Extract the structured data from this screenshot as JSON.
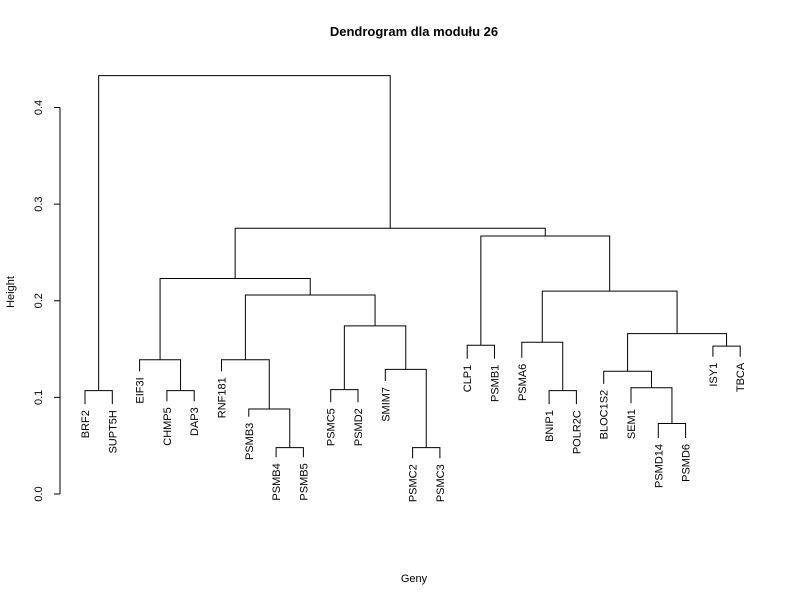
{
  "chart_data": {
    "type": "dendrogram",
    "title": "Dendrogram dla modułu 26",
    "xlabel": "Geny",
    "ylabel": "Height",
    "ylim": [
      0,
      0.45
    ],
    "yticks": [
      0.0,
      0.1,
      0.2,
      0.3,
      0.4
    ],
    "ytick_labels": [
      "0.0",
      "0.1",
      "0.2",
      "0.3",
      "0.4"
    ],
    "grid": false,
    "leaves": [
      "BRF2",
      "SUPT5H",
      "EIF3I",
      "CHMP5",
      "DAP3",
      "RNF181",
      "PSMB3",
      "PSMB4",
      "PSMB5",
      "PSMC5",
      "PSMD2",
      "SMIM7",
      "PSMC2",
      "PSMC3",
      "CLP1",
      "PSMB1",
      "PSMA6",
      "BNIP1",
      "POLR2C",
      "BLOC1S2",
      "SEM1",
      "PSMD14",
      "PSMD6",
      "ISY1",
      "TBCA"
    ],
    "leaf_heights": [
      0.093,
      0.093,
      0.127,
      0.096,
      0.096,
      0.127,
      0.08,
      0.038,
      0.038,
      0.095,
      0.095,
      0.117,
      0.037,
      0.037,
      0.14,
      0.14,
      0.141,
      0.093,
      0.093,
      0.114,
      0.094,
      0.058,
      0.058,
      0.142,
      0.142
    ],
    "merges": [
      {
        "name": "m_brf2_supt5h",
        "height": 0.107,
        "children": [
          "BRF2",
          "SUPT5H"
        ]
      },
      {
        "name": "m_chmp5_dap3",
        "height": 0.107,
        "children": [
          "CHMP5",
          "DAP3"
        ]
      },
      {
        "name": "m_eif3i_grp",
        "height": 0.139,
        "children": [
          "EIF3I",
          "m_chmp5_dap3"
        ]
      },
      {
        "name": "m_psmb4_psmb5",
        "height": 0.048,
        "children": [
          "PSMB4",
          "PSMB5"
        ]
      },
      {
        "name": "m_psmb3_grp",
        "height": 0.088,
        "children": [
          "PSMB3",
          "m_psmb4_psmb5"
        ]
      },
      {
        "name": "m_rnf181_grp",
        "height": 0.139,
        "children": [
          "RNF181",
          "m_psmb3_grp"
        ]
      },
      {
        "name": "m_psmc5_psmd2",
        "height": 0.108,
        "children": [
          "PSMC5",
          "PSMD2"
        ]
      },
      {
        "name": "m_psmc2_psmc3",
        "height": 0.048,
        "children": [
          "PSMC2",
          "PSMC3"
        ]
      },
      {
        "name": "m_smim7_grp",
        "height": 0.129,
        "children": [
          "SMIM7",
          "m_psmc2_psmc3"
        ]
      },
      {
        "name": "m_psmc_grp",
        "height": 0.174,
        "children": [
          "m_psmc5_psmd2",
          "m_smim7_grp"
        ]
      },
      {
        "name": "m_psm_big",
        "height": 0.206,
        "children": [
          "m_rnf181_grp",
          "m_psmc_grp"
        ]
      },
      {
        "name": "m_left_grp",
        "height": 0.223,
        "children": [
          "m_eif3i_grp",
          "m_psm_big"
        ]
      },
      {
        "name": "m_clp1_psmb1",
        "height": 0.154,
        "children": [
          "CLP1",
          "PSMB1"
        ]
      },
      {
        "name": "m_bnip1_polr2c",
        "height": 0.107,
        "children": [
          "BNIP1",
          "POLR2C"
        ]
      },
      {
        "name": "m_psma6_grp",
        "height": 0.157,
        "children": [
          "PSMA6",
          "m_bnip1_polr2c"
        ]
      },
      {
        "name": "m_psmd14_psmd6",
        "height": 0.073,
        "children": [
          "PSMD14",
          "PSMD6"
        ]
      },
      {
        "name": "m_sem1_grp",
        "height": 0.11,
        "children": [
          "SEM1",
          "m_psmd14_psmd6"
        ]
      },
      {
        "name": "m_bloc1s2_grp",
        "height": 0.127,
        "children": [
          "BLOC1S2",
          "m_sem1_grp"
        ]
      },
      {
        "name": "m_isy1_tbca",
        "height": 0.153,
        "children": [
          "ISY1",
          "TBCA"
        ]
      },
      {
        "name": "m_bloc_isy",
        "height": 0.166,
        "children": [
          "m_bloc1s2_grp",
          "m_isy1_tbca"
        ]
      },
      {
        "name": "m_psma6_bloc",
        "height": 0.21,
        "children": [
          "m_psma6_grp",
          "m_bloc_isy"
        ]
      },
      {
        "name": "m_right_grp",
        "height": 0.267,
        "children": [
          "m_clp1_psmb1",
          "m_psma6_bloc"
        ]
      },
      {
        "name": "m_mid",
        "height": 0.275,
        "children": [
          "m_left_grp",
          "m_right_grp"
        ]
      },
      {
        "name": "m_root",
        "height": 0.433,
        "children": [
          "m_brf2_supt5h",
          "m_mid"
        ]
      }
    ]
  }
}
